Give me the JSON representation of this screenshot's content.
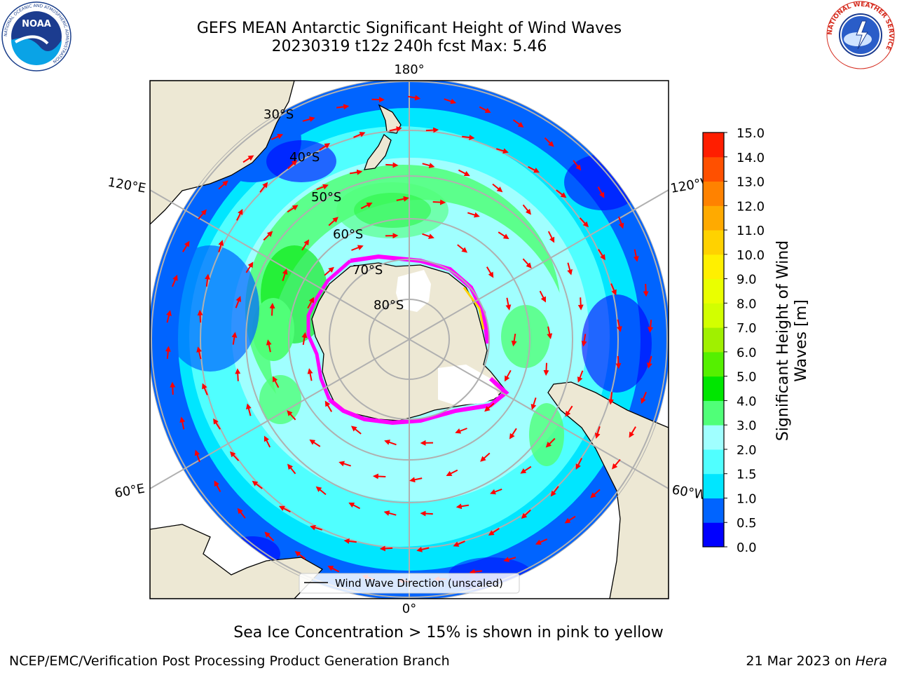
{
  "header": {
    "title_line1": "GEFS MEAN Antarctic Significant Height of Wind Waves",
    "title_line2": "20230319 t12z 240h fcst   Max: 5.46"
  },
  "logos": {
    "noaa": {
      "center_text": "NOAA",
      "ring_text": "NATIONAL OCEANIC AND ATMOSPHERIC ADMINISTRATION",
      "ring_text_bottom": "U.S. DEPARTMENT OF COMMERCE"
    },
    "nws": {
      "ring_text": "NATIONAL WEATHER SERVICE"
    }
  },
  "map": {
    "projection": "south-polar-stereographic",
    "lon_labels": {
      "top": "180°",
      "bottom": "0°",
      "left_upper": "120°E",
      "left_lower": "60°E",
      "right_upper": "120°W",
      "right_lower": "60°W"
    },
    "lat_labels": [
      "30°S",
      "40°S",
      "50°S",
      "60°S",
      "70°S",
      "80°S"
    ],
    "legend_label": "Wind Wave Direction (unscaled)",
    "colors": {
      "land": "#ede8d4",
      "grid": "#b0b0b0",
      "arrow": "#ff0000",
      "ice_low": "#ff00ff",
      "ice_high": "#ffd200"
    }
  },
  "colorbar": {
    "label": "Significant Height of Wind Waves [m]",
    "ticks": [
      "0.0",
      "0.5",
      "1.0",
      "1.5",
      "2.0",
      "3.0",
      "4.0",
      "5.0",
      "6.0",
      "7.0",
      "8.0",
      "9.0",
      "10.0",
      "11.0",
      "12.0",
      "13.0",
      "14.0",
      "15.0"
    ],
    "colors": [
      "#0000ff",
      "#0064ff",
      "#00e6ff",
      "#50ffff",
      "#a0ffff",
      "#50ff78",
      "#00e600",
      "#55f000",
      "#a0f000",
      "#d2ff00",
      "#eaff00",
      "#fff000",
      "#ffd200",
      "#ffaa00",
      "#ff8200",
      "#ff5000",
      "#ff1e00"
    ]
  },
  "footer": {
    "note": "Sea Ice Concentration > 15% is shown in pink to yellow",
    "credit": "NCEP/EMC/Verification Post Processing Product Generation Branch",
    "date_prefix": "21 Mar 2023 on ",
    "host": "Hera"
  }
}
